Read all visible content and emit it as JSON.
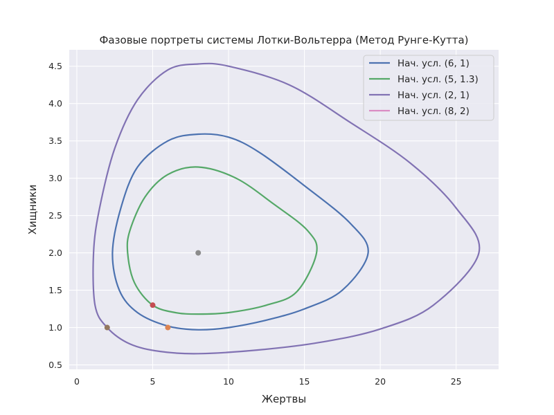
{
  "chart_data": {
    "type": "line",
    "title": "Фазовые портреты системы Лотки-Вольтерра (Метод Рунге-Кутта)",
    "xlabel": "Жертвы",
    "ylabel": "Хищники",
    "xlim": [
      -0.5,
      27.8
    ],
    "ylim": [
      0.44,
      4.72
    ],
    "xticks": [
      0,
      5,
      10,
      15,
      20,
      25
    ],
    "yticks": [
      0.5,
      1.0,
      1.5,
      2.0,
      2.5,
      3.0,
      3.5,
      4.0,
      4.5
    ],
    "xtick_labels": [
      "0",
      "5",
      "10",
      "15",
      "20",
      "25"
    ],
    "ytick_labels": [
      "0.5",
      "1.0",
      "1.5",
      "2.0",
      "2.5",
      "3.0",
      "3.5",
      "4.0",
      "4.5"
    ],
    "grid": true,
    "legend_position": "top-right",
    "equilibrium": {
      "x": 8,
      "y": 2,
      "color": "#8c8c8c"
    },
    "series": [
      {
        "name": "Нач. усл. (6, 1)",
        "color": "#4c72b0",
        "start": {
          "x": 6,
          "y": 1,
          "color": "#dd8452"
        },
        "points": [
          [
            8.0,
            0.97
          ],
          [
            10.0,
            1.0
          ],
          [
            12.5,
            1.1
          ],
          [
            15.0,
            1.25
          ],
          [
            17.5,
            1.5
          ],
          [
            19.2,
            2.0
          ],
          [
            18.0,
            2.4
          ],
          [
            15.0,
            2.9
          ],
          [
            12.0,
            3.35
          ],
          [
            10.0,
            3.55
          ],
          [
            8.0,
            3.59
          ],
          [
            6.0,
            3.5
          ],
          [
            4.0,
            3.15
          ],
          [
            2.9,
            2.6
          ],
          [
            2.35,
            2.0
          ],
          [
            2.8,
            1.5
          ],
          [
            4.0,
            1.2
          ],
          [
            6.0,
            1.02
          ],
          [
            8.0,
            0.97
          ]
        ]
      },
      {
        "name": "Нач. усл. (5, 1.3)",
        "color": "#55a868",
        "start": {
          "x": 5,
          "y": 1.3,
          "color": "#c44e52"
        },
        "points": [
          [
            8.0,
            1.18
          ],
          [
            10.0,
            1.2
          ],
          [
            12.5,
            1.3
          ],
          [
            14.5,
            1.48
          ],
          [
            15.8,
            2.0
          ],
          [
            15.2,
            2.3
          ],
          [
            13.0,
            2.65
          ],
          [
            10.5,
            3.0
          ],
          [
            8.0,
            3.15
          ],
          [
            6.0,
            3.05
          ],
          [
            4.5,
            2.75
          ],
          [
            3.5,
            2.3
          ],
          [
            3.35,
            2.0
          ],
          [
            3.8,
            1.6
          ],
          [
            5.0,
            1.3
          ],
          [
            6.5,
            1.2
          ],
          [
            8.0,
            1.18
          ]
        ]
      },
      {
        "name": "Нач. усл. (2, 1)",
        "color": "#8172b3",
        "start": {
          "x": 2,
          "y": 1,
          "color": "#937860"
        },
        "points": [
          [
            8.0,
            0.65
          ],
          [
            12.0,
            0.7
          ],
          [
            16.0,
            0.8
          ],
          [
            20.0,
            0.98
          ],
          [
            23.5,
            1.3
          ],
          [
            26.5,
            2.0
          ],
          [
            25.0,
            2.6
          ],
          [
            22.0,
            3.2
          ],
          [
            18.0,
            3.75
          ],
          [
            14.0,
            4.25
          ],
          [
            10.0,
            4.5
          ],
          [
            8.0,
            4.53
          ],
          [
            6.0,
            4.45
          ],
          [
            4.0,
            4.05
          ],
          [
            2.5,
            3.4
          ],
          [
            1.5,
            2.6
          ],
          [
            1.1,
            2.0
          ],
          [
            1.2,
            1.3
          ],
          [
            2.0,
            1.0
          ],
          [
            3.5,
            0.78
          ],
          [
            5.5,
            0.68
          ],
          [
            8.0,
            0.65
          ]
        ]
      },
      {
        "name": "Нач. усл. (8, 2)",
        "color": "#da8bc3",
        "points": []
      }
    ]
  }
}
